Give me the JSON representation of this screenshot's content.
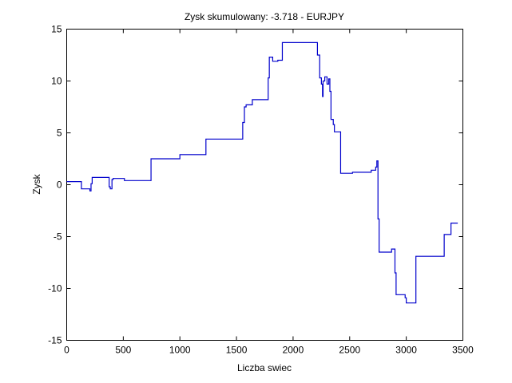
{
  "chart_data": {
    "type": "line",
    "title": "Zysk skumulowany: -3.718 - EURJPY",
    "xlabel": "Liczba swiec",
    "ylabel": "Zysk",
    "xlim": [
      0,
      3500
    ],
    "ylim": [
      -15,
      15
    ],
    "xticks": [
      0,
      500,
      1000,
      1500,
      2000,
      2500,
      3000,
      3500
    ],
    "yticks": [
      -15,
      -10,
      -5,
      0,
      5,
      10,
      15
    ],
    "grid": false,
    "legend": false,
    "series": [
      {
        "color": "#0000cc",
        "step": true,
        "points": [
          [
            0,
            0.3
          ],
          [
            130,
            0.3
          ],
          [
            130,
            -0.4
          ],
          [
            205,
            -0.4
          ],
          [
            205,
            -0.6
          ],
          [
            215,
            -0.6
          ],
          [
            215,
            0.1
          ],
          [
            225,
            0.1
          ],
          [
            225,
            0.7
          ],
          [
            375,
            0.7
          ],
          [
            375,
            -0.2
          ],
          [
            385,
            -0.2
          ],
          [
            385,
            -0.4
          ],
          [
            400,
            -0.4
          ],
          [
            400,
            0.5
          ],
          [
            410,
            0.5
          ],
          [
            410,
            0.6
          ],
          [
            510,
            0.6
          ],
          [
            510,
            0.4
          ],
          [
            745,
            0.4
          ],
          [
            745,
            2.5
          ],
          [
            1000,
            2.5
          ],
          [
            1000,
            2.9
          ],
          [
            1230,
            2.9
          ],
          [
            1230,
            4.4
          ],
          [
            1555,
            4.4
          ],
          [
            1555,
            6.0
          ],
          [
            1570,
            6.0
          ],
          [
            1570,
            7.5
          ],
          [
            1585,
            7.5
          ],
          [
            1585,
            7.7
          ],
          [
            1640,
            7.7
          ],
          [
            1640,
            8.2
          ],
          [
            1780,
            8.2
          ],
          [
            1780,
            10.3
          ],
          [
            1790,
            10.3
          ],
          [
            1790,
            12.3
          ],
          [
            1820,
            12.3
          ],
          [
            1820,
            11.9
          ],
          [
            1865,
            11.9
          ],
          [
            1865,
            12.0
          ],
          [
            1905,
            12.0
          ],
          [
            1905,
            13.7
          ],
          [
            2215,
            13.7
          ],
          [
            2215,
            12.5
          ],
          [
            2235,
            12.5
          ],
          [
            2235,
            10.3
          ],
          [
            2250,
            10.3
          ],
          [
            2250,
            9.7
          ],
          [
            2260,
            9.7
          ],
          [
            2260,
            8.5
          ],
          [
            2265,
            8.5
          ],
          [
            2265,
            10.0
          ],
          [
            2280,
            10.0
          ],
          [
            2280,
            10.4
          ],
          [
            2300,
            10.4
          ],
          [
            2300,
            9.7
          ],
          [
            2315,
            9.7
          ],
          [
            2315,
            10.2
          ],
          [
            2325,
            10.2
          ],
          [
            2325,
            9.0
          ],
          [
            2335,
            9.0
          ],
          [
            2335,
            6.3
          ],
          [
            2355,
            6.3
          ],
          [
            2355,
            5.8
          ],
          [
            2365,
            5.8
          ],
          [
            2365,
            5.1
          ],
          [
            2420,
            5.1
          ],
          [
            2420,
            1.1
          ],
          [
            2525,
            1.1
          ],
          [
            2525,
            1.2
          ],
          [
            2690,
            1.2
          ],
          [
            2690,
            1.4
          ],
          [
            2730,
            1.4
          ],
          [
            2730,
            1.7
          ],
          [
            2740,
            1.7
          ],
          [
            2740,
            2.3
          ],
          [
            2750,
            2.3
          ],
          [
            2750,
            -3.3
          ],
          [
            2760,
            -3.3
          ],
          [
            2760,
            -6.5
          ],
          [
            2870,
            -6.5
          ],
          [
            2870,
            -6.2
          ],
          [
            2900,
            -6.2
          ],
          [
            2900,
            -8.5
          ],
          [
            2910,
            -8.5
          ],
          [
            2910,
            -10.6
          ],
          [
            2990,
            -10.6
          ],
          [
            2990,
            -10.9
          ],
          [
            3000,
            -10.9
          ],
          [
            3000,
            -11.4
          ],
          [
            3085,
            -11.4
          ],
          [
            3085,
            -6.9
          ],
          [
            3335,
            -6.9
          ],
          [
            3335,
            -4.8
          ],
          [
            3395,
            -4.8
          ],
          [
            3395,
            -3.7
          ],
          [
            3455,
            -3.7
          ]
        ]
      }
    ]
  }
}
